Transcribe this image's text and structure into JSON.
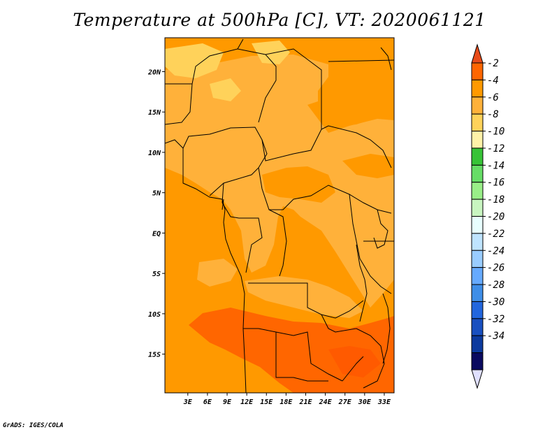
{
  "chart_data": {
    "type": "heatmap",
    "title": "Temperature at 500hPa [C], VT: 2020061121",
    "variable": "Temperature at 500hPa",
    "units": "C",
    "valid_time": "2020061121",
    "x_axis": {
      "range_deg_east": [
        -0.5,
        34.5
      ],
      "tick_labels": [
        "3E",
        "6E",
        "9E",
        "12E",
        "15E",
        "18E",
        "21E",
        "24E",
        "27E",
        "30E",
        "33E"
      ],
      "tick_values": [
        3,
        6,
        9,
        12,
        15,
        18,
        21,
        24,
        27,
        30,
        33
      ]
    },
    "y_axis": {
      "range_deg_north": [
        -19.8,
        24.2
      ],
      "tick_labels": [
        "20N",
        "15N",
        "10N",
        "5N",
        "EQ",
        "5S",
        "10S",
        "15S"
      ],
      "tick_values": [
        20,
        15,
        10,
        5,
        0,
        -5,
        -10,
        -15
      ]
    },
    "colorbar": {
      "labels": [
        "-2",
        "-4",
        "-6",
        "-8",
        "-10",
        "-12",
        "-14",
        "-16",
        "-18",
        "-20",
        "-22",
        "-24",
        "-26",
        "-28",
        "-30",
        "-32",
        "-34"
      ],
      "colors": [
        "#e74b1a",
        "#ff6600",
        "#ff9900",
        "#ffb13a",
        "#ffd25a",
        "#fff2a8",
        "#37c337",
        "#66dd66",
        "#99ee88",
        "#c8f5c0",
        "#e8ffff",
        "#bfe4ff",
        "#99ccff",
        "#66aaff",
        "#3f8ee8",
        "#2266dd",
        "#1950c0",
        "#0c3a9e",
        "#0a0a60",
        "#e0e0ff"
      ]
    },
    "regions": [
      {
        "range": "-2 to -4",
        "description": "southern band ~11S-20S, 13E-33E",
        "color": "#ff6600"
      },
      {
        "range": "-4 to -6",
        "description": "west/southwest and northeast",
        "color": "#ff9900"
      },
      {
        "range": "-6 to -8",
        "description": "north, central and east",
        "color": "#ffb13a"
      },
      {
        "range": "-8 to -10",
        "description": "small patches in the far north",
        "color": "#ffd25a"
      }
    ]
  },
  "footer": {
    "credit": "GrADS: IGES/COLA"
  }
}
